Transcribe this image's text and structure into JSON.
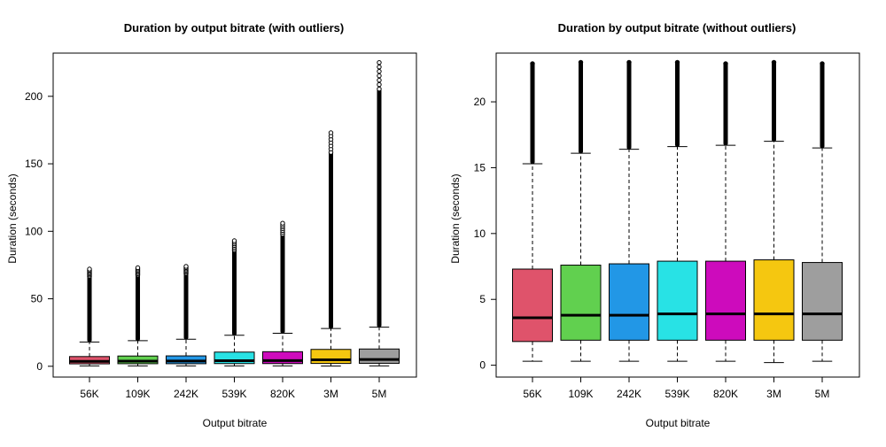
{
  "chart_data": [
    {
      "type": "boxplot",
      "title": "Duration by output bitrate (with outliers)",
      "xlabel": "Output bitrate",
      "ylabel": "Duration (seconds)",
      "ylim": [
        -8,
        232
      ],
      "yticks": [
        0,
        50,
        100,
        150,
        200
      ],
      "grid": false,
      "categories": [
        "56K",
        "109K",
        "242K",
        "539K",
        "820K",
        "3M",
        "5M"
      ],
      "colors": [
        "#DF536B",
        "#61D04F",
        "#2297E6",
        "#28E2E5",
        "#CD0BBC",
        "#F5C710",
        "#9E9E9E"
      ],
      "boxes": [
        {
          "min": 0.3,
          "q1": 1.8,
          "median": 3.6,
          "q3": 7.2,
          "whisker_high": 18.0,
          "outlier_max": 72
        },
        {
          "min": 0.3,
          "q1": 1.9,
          "median": 3.8,
          "q3": 7.6,
          "whisker_high": 19.0,
          "outlier_max": 73
        },
        {
          "min": 0.3,
          "q1": 1.9,
          "median": 3.9,
          "q3": 7.7,
          "whisker_high": 20.0,
          "outlier_max": 74
        },
        {
          "min": 0.3,
          "q1": 2.0,
          "median": 4.1,
          "q3": 10.5,
          "whisker_high": 23.0,
          "outlier_max": 93
        },
        {
          "min": 0.3,
          "q1": 2.0,
          "median": 4.2,
          "q3": 10.8,
          "whisker_high": 24.5,
          "outlier_max": 106
        },
        {
          "min": 0.2,
          "q1": 2.1,
          "median": 4.8,
          "q3": 12.5,
          "whisker_high": 28.0,
          "outlier_max": 173
        },
        {
          "min": 0.3,
          "q1": 2.2,
          "median": 5.0,
          "q3": 12.8,
          "whisker_high": 29.0,
          "outlier_max": 225
        }
      ]
    },
    {
      "type": "boxplot",
      "title": "Duration by output bitrate (without outliers)",
      "xlabel": "Output bitrate",
      "ylabel": "Duration (seconds)",
      "ylim": [
        -0.9,
        23.7
      ],
      "yticks": [
        0,
        5,
        10,
        15,
        20
      ],
      "grid": false,
      "categories": [
        "56K",
        "109K",
        "242K",
        "539K",
        "820K",
        "3M",
        "5M"
      ],
      "colors": [
        "#DF536B",
        "#61D04F",
        "#2297E6",
        "#28E2E5",
        "#CD0BBC",
        "#F5C710",
        "#9E9E9E"
      ],
      "boxes": [
        {
          "min": 0.3,
          "q1": 1.8,
          "median": 3.6,
          "q3": 7.3,
          "whisker_high": 15.3,
          "outlier_max": 22.9
        },
        {
          "min": 0.3,
          "q1": 1.9,
          "median": 3.8,
          "q3": 7.6,
          "whisker_high": 16.1,
          "outlier_max": 23.0
        },
        {
          "min": 0.3,
          "q1": 1.9,
          "median": 3.8,
          "q3": 7.7,
          "whisker_high": 16.4,
          "outlier_max": 23.0
        },
        {
          "min": 0.3,
          "q1": 1.9,
          "median": 3.9,
          "q3": 7.9,
          "whisker_high": 16.6,
          "outlier_max": 23.0
        },
        {
          "min": 0.3,
          "q1": 1.9,
          "median": 3.9,
          "q3": 7.9,
          "whisker_high": 16.7,
          "outlier_max": 22.9
        },
        {
          "min": 0.2,
          "q1": 1.9,
          "median": 3.9,
          "q3": 8.0,
          "whisker_high": 17.0,
          "outlier_max": 23.0
        },
        {
          "min": 0.3,
          "q1": 1.9,
          "median": 3.9,
          "q3": 7.8,
          "whisker_high": 16.5,
          "outlier_max": 22.9
        }
      ]
    }
  ]
}
